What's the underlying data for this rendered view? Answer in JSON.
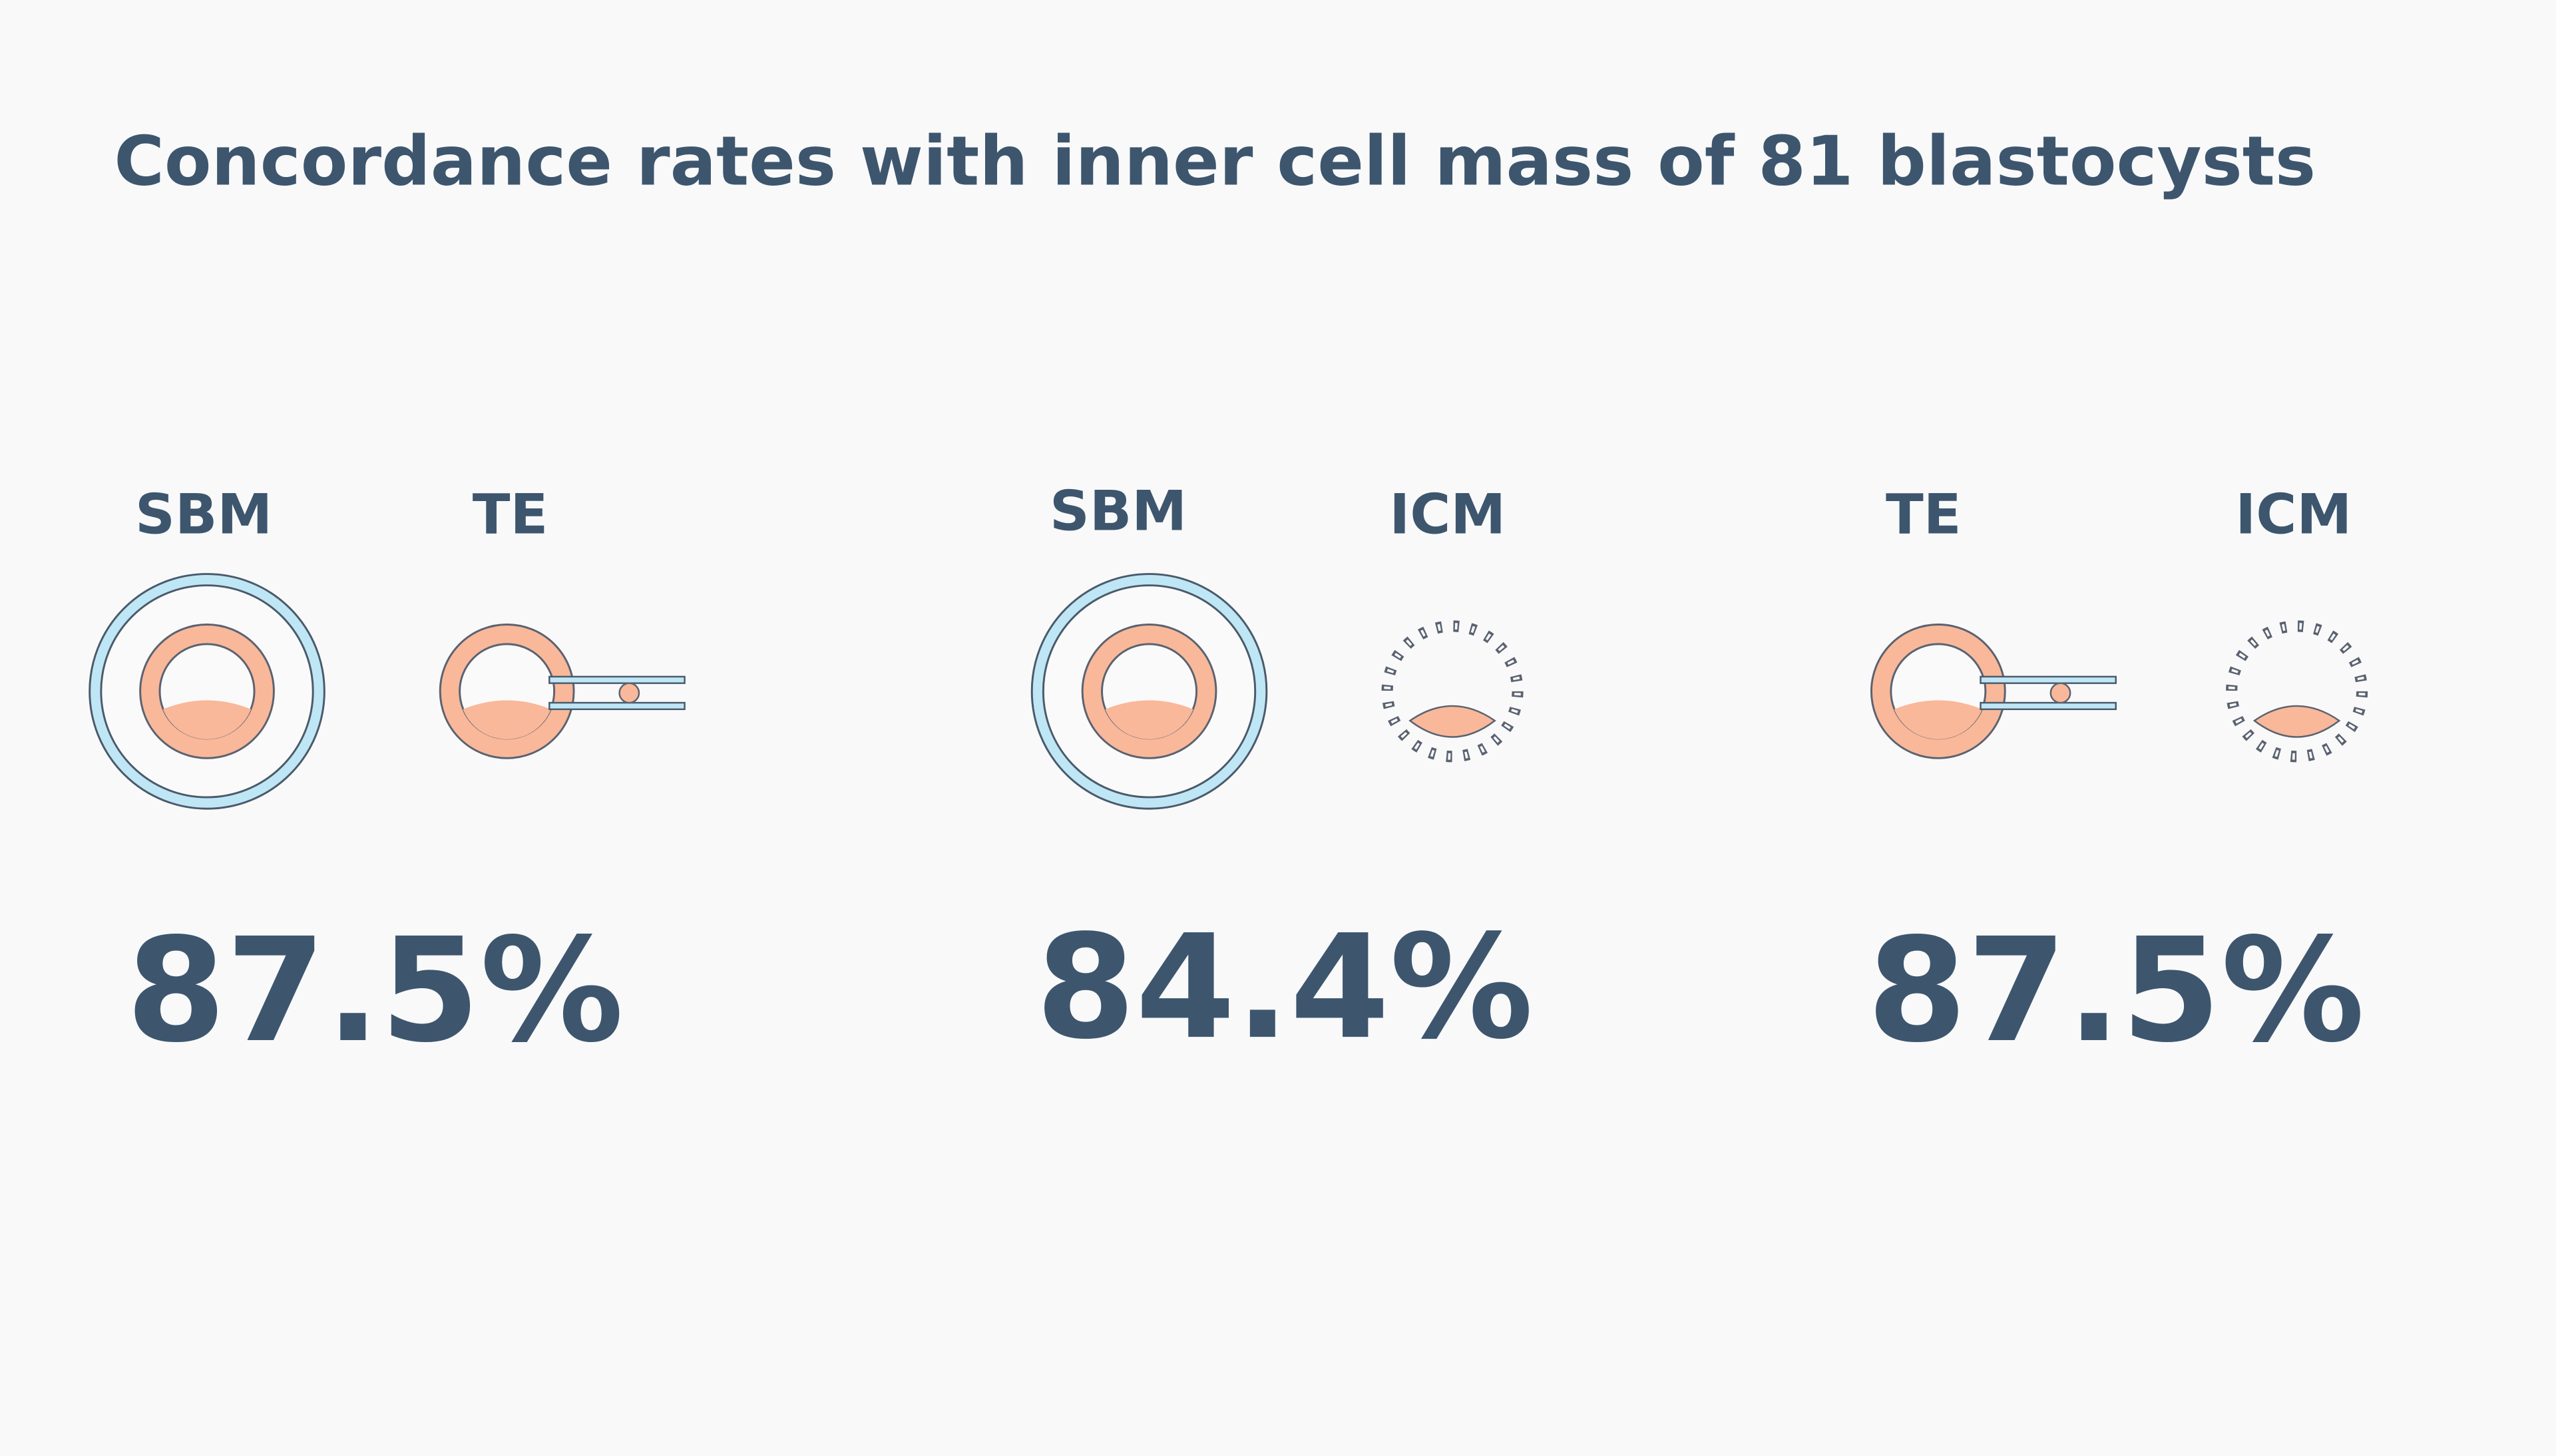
{
  "title": "Concordance rates with inner cell mass of 81 blastocysts",
  "panels": [
    {
      "labels": [
        "SBM",
        "TE"
      ],
      "value": "87.5%"
    },
    {
      "labels": [
        "SBM",
        "ICM"
      ],
      "value": "84.4%"
    },
    {
      "labels": [
        "TE",
        "ICM"
      ],
      "value": "87.5%"
    }
  ]
}
